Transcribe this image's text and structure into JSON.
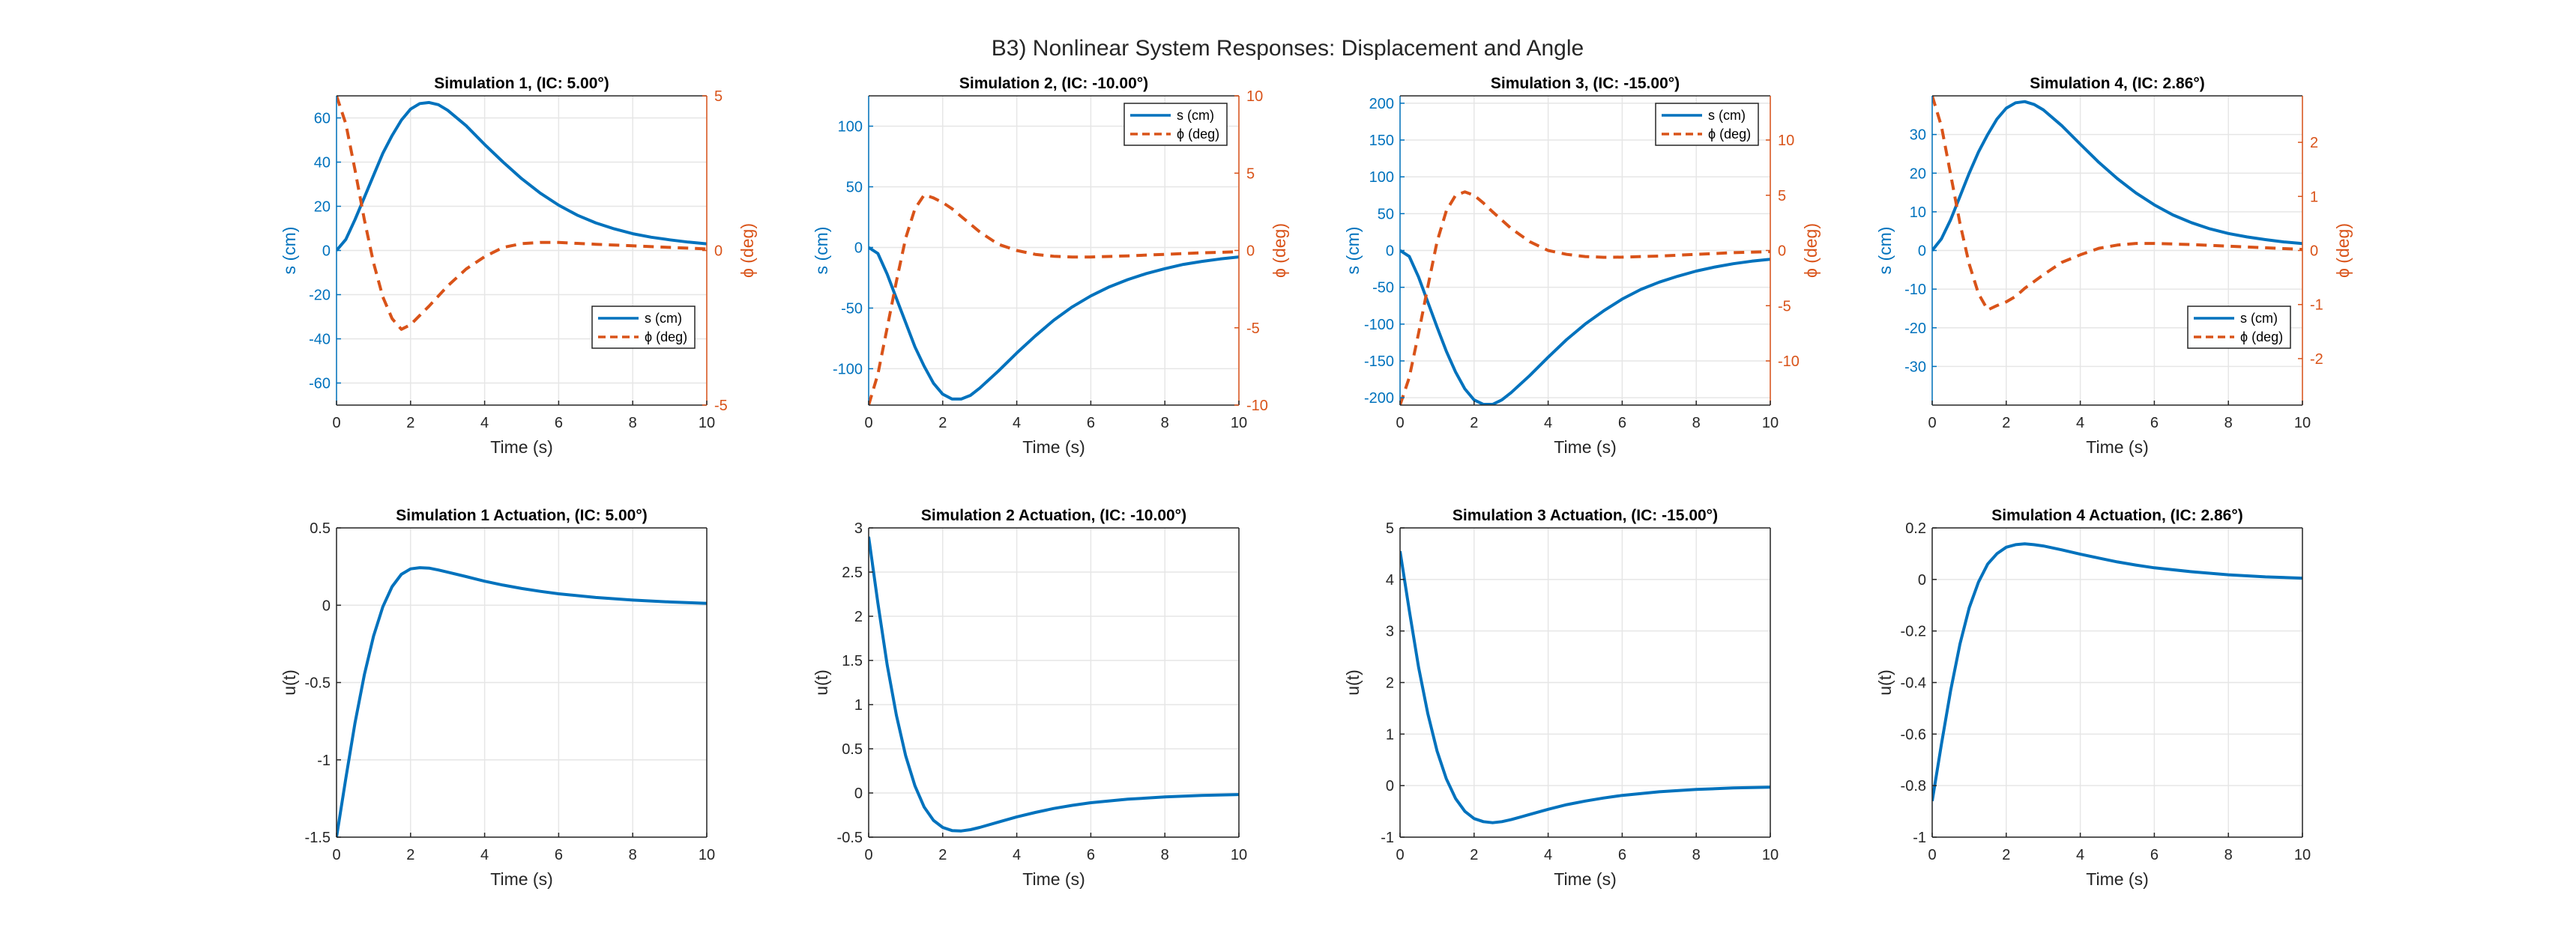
{
  "figure": {
    "title": "B3) Nonlinear System Responses: Displacement and Angle"
  },
  "colors": {
    "displacement": "#0072BD",
    "angle": "#D95319",
    "actuation": "#0072BD",
    "axis": "#262626",
    "grid": "#e6e6e6"
  },
  "chart_data": [
    {
      "type": "line",
      "title": "Simulation 1, (IC: 5.00°)",
      "xlabel": "Time (s)",
      "ylabel": "s (cm)",
      "ylabel_right": "ϕ (deg)",
      "xlim": [
        0,
        10
      ],
      "ylim": [
        -70,
        70
      ],
      "ylim_right": [
        -5,
        5
      ],
      "xticks": [
        0,
        2,
        4,
        6,
        8,
        10
      ],
      "yticks": [
        -60,
        -40,
        -20,
        0,
        20,
        40,
        60
      ],
      "yticks_right": [
        -5,
        0,
        5
      ],
      "grid": true,
      "legend": "bottom-right",
      "series": [
        {
          "name": "s (cm)",
          "axis": "left",
          "style": "solid",
          "x": [
            0,
            0.25,
            0.5,
            0.75,
            1,
            1.25,
            1.5,
            1.75,
            2,
            2.25,
            2.5,
            2.75,
            3,
            3.5,
            4,
            4.5,
            5,
            5.5,
            6,
            6.5,
            7,
            7.5,
            8,
            8.5,
            9,
            9.5,
            10
          ],
          "values": [
            0,
            5,
            14,
            24,
            34,
            44,
            52,
            59,
            64,
            66.5,
            67,
            66,
            63.5,
            56.5,
            48,
            40,
            32.5,
            26,
            20.5,
            16,
            12.5,
            9.8,
            7.6,
            6,
            4.8,
            3.8,
            3
          ]
        },
        {
          "name": "ϕ (deg)",
          "axis": "right",
          "style": "dashed",
          "x": [
            0,
            0.25,
            0.5,
            0.75,
            1,
            1.25,
            1.5,
            1.75,
            2,
            2.25,
            2.5,
            3,
            3.5,
            4,
            4.5,
            5,
            5.5,
            6,
            6.5,
            7,
            8,
            9,
            10
          ],
          "values": [
            5,
            4.1,
            2.6,
            1,
            -0.4,
            -1.5,
            -2.2,
            -2.55,
            -2.4,
            -2.1,
            -1.8,
            -1.15,
            -0.6,
            -0.2,
            0.1,
            0.22,
            0.26,
            0.26,
            0.23,
            0.2,
            0.15,
            0.1,
            0.05
          ]
        }
      ]
    },
    {
      "type": "line",
      "title": "Simulation 2, (IC: -10.00°)",
      "xlabel": "Time (s)",
      "ylabel": "s (cm)",
      "ylabel_right": "ϕ (deg)",
      "xlim": [
        0,
        10
      ],
      "ylim": [
        -130,
        125
      ],
      "ylim_right": [
        -10,
        10
      ],
      "xticks": [
        0,
        2,
        4,
        6,
        8,
        10
      ],
      "yticks": [
        -100,
        -50,
        0,
        50,
        100
      ],
      "yticks_right": [
        -10,
        -5,
        0,
        5,
        10
      ],
      "grid": true,
      "legend": "top-right",
      "series": [
        {
          "name": "s (cm)",
          "axis": "left",
          "style": "solid",
          "x": [
            0,
            0.25,
            0.5,
            0.75,
            1,
            1.25,
            1.5,
            1.75,
            2,
            2.25,
            2.5,
            2.75,
            3,
            3.5,
            4,
            4.5,
            5,
            5.5,
            6,
            6.5,
            7,
            7.5,
            8,
            8.5,
            9,
            9.5,
            10
          ],
          "values": [
            0,
            -5,
            -22,
            -42,
            -62,
            -82,
            -98,
            -112,
            -121,
            -125,
            -125,
            -122,
            -116,
            -102,
            -87,
            -73,
            -60,
            -49,
            -40,
            -32.5,
            -26.5,
            -21.5,
            -17.5,
            -14,
            -11.5,
            -9.5,
            -7.8
          ]
        },
        {
          "name": "ϕ (deg)",
          "axis": "right",
          "style": "dashed",
          "x": [
            0,
            0.25,
            0.5,
            0.75,
            1,
            1.25,
            1.5,
            1.75,
            2,
            2.25,
            2.5,
            3,
            3.5,
            4,
            4.5,
            5,
            5.5,
            6,
            7,
            8,
            9,
            10
          ],
          "values": [
            -10,
            -8,
            -5,
            -2,
            0.8,
            2.7,
            3.6,
            3.4,
            3.1,
            2.7,
            2.2,
            1.2,
            0.4,
            0,
            -0.25,
            -0.38,
            -0.42,
            -0.42,
            -0.35,
            -0.25,
            -0.15,
            -0.08
          ]
        }
      ]
    },
    {
      "type": "line",
      "title": "Simulation 3, (IC: -15.00°)",
      "xlabel": "Time (s)",
      "ylabel": "s (cm)",
      "ylabel_right": "ϕ (deg)",
      "xlim": [
        0,
        10
      ],
      "ylim": [
        -210,
        210
      ],
      "ylim_right": [
        -14,
        14
      ],
      "xticks": [
        0,
        2,
        4,
        6,
        8,
        10
      ],
      "yticks": [
        -200,
        -150,
        -100,
        -50,
        0,
        50,
        100,
        150,
        200
      ],
      "yticks_right": [
        -10,
        -5,
        0,
        5,
        10
      ],
      "grid": true,
      "legend": "top-right",
      "series": [
        {
          "name": "s (cm)",
          "axis": "left",
          "style": "solid",
          "x": [
            0,
            0.25,
            0.5,
            0.75,
            1,
            1.25,
            1.5,
            1.75,
            2,
            2.25,
            2.5,
            2.75,
            3,
            3.5,
            4,
            4.5,
            5,
            5.5,
            6,
            6.5,
            7,
            7.5,
            8,
            8.5,
            9,
            9.5,
            10
          ],
          "values": [
            0,
            -8,
            -36,
            -70,
            -104,
            -137,
            -165,
            -188,
            -203,
            -209,
            -209,
            -203,
            -193,
            -170,
            -145,
            -121,
            -100,
            -82,
            -66,
            -53,
            -43,
            -35,
            -28,
            -22.5,
            -18,
            -14.5,
            -12
          ]
        },
        {
          "name": "ϕ (deg)",
          "axis": "right",
          "style": "dashed",
          "x": [
            0,
            0.25,
            0.5,
            0.75,
            1,
            1.25,
            1.5,
            1.75,
            2,
            2.25,
            2.5,
            3,
            3.5,
            4,
            4.5,
            5,
            5.5,
            6,
            7,
            8,
            9,
            10
          ],
          "values": [
            -14,
            -11.5,
            -7.5,
            -3.3,
            0.8,
            3.6,
            5,
            5.3,
            5,
            4.3,
            3.5,
            2,
            0.8,
            0,
            -0.35,
            -0.55,
            -0.62,
            -0.6,
            -0.5,
            -0.35,
            -0.2,
            -0.1
          ]
        }
      ]
    },
    {
      "type": "line",
      "title": "Simulation 4, (IC: 2.86°)",
      "xlabel": "Time (s)",
      "ylabel": "s (cm)",
      "ylabel_right": "ϕ (deg)",
      "xlim": [
        0,
        10
      ],
      "ylim": [
        -40,
        40
      ],
      "ylim_right": [
        -2.86,
        2.86
      ],
      "xticks": [
        0,
        2,
        4,
        6,
        8,
        10
      ],
      "yticks": [
        -30,
        -20,
        -10,
        0,
        10,
        20,
        30
      ],
      "yticks_right": [
        -2,
        -1,
        0,
        1,
        2
      ],
      "grid": true,
      "legend": "bottom-right",
      "series": [
        {
          "name": "s (cm)",
          "axis": "left",
          "style": "solid",
          "x": [
            0,
            0.25,
            0.5,
            0.75,
            1,
            1.25,
            1.5,
            1.75,
            2,
            2.25,
            2.5,
            2.75,
            3,
            3.5,
            4,
            4.5,
            5,
            5.5,
            6,
            6.5,
            7,
            7.5,
            8,
            8.5,
            9,
            9.5,
            10
          ],
          "values": [
            0,
            3,
            8,
            14,
            20,
            25.5,
            30,
            34,
            36.8,
            38.2,
            38.5,
            37.8,
            36.4,
            32.3,
            27.5,
            22.8,
            18.6,
            14.9,
            11.8,
            9.2,
            7.2,
            5.6,
            4.4,
            3.5,
            2.8,
            2.2,
            1.8
          ]
        },
        {
          "name": "ϕ (deg)",
          "axis": "right",
          "style": "dashed",
          "x": [
            0,
            0.25,
            0.5,
            0.75,
            1,
            1.25,
            1.5,
            1.75,
            2,
            2.25,
            2.5,
            3,
            3.5,
            4,
            4.5,
            5,
            5.5,
            6,
            6.5,
            7,
            8,
            9,
            10
          ],
          "values": [
            2.86,
            2.3,
            1.4,
            0.5,
            -0.25,
            -0.8,
            -1.1,
            -1.02,
            -0.95,
            -0.85,
            -0.7,
            -0.45,
            -0.22,
            -0.08,
            0.04,
            0.1,
            0.13,
            0.13,
            0.12,
            0.11,
            0.08,
            0.05,
            0.02
          ]
        }
      ]
    },
    {
      "type": "line",
      "title": "Simulation 1 Actuation, (IC: 5.00°)",
      "xlabel": "Time (s)",
      "ylabel": "u(t)",
      "xlim": [
        0,
        10
      ],
      "ylim": [
        -1.5,
        0.5
      ],
      "xticks": [
        0,
        2,
        4,
        6,
        8,
        10
      ],
      "yticks": [
        -1.5,
        -1,
        -0.5,
        0,
        0.5
      ],
      "grid": true,
      "series": [
        {
          "name": "",
          "axis": "left",
          "style": "solid",
          "x": [
            0,
            0.25,
            0.5,
            0.75,
            1,
            1.25,
            1.5,
            1.75,
            2,
            2.25,
            2.5,
            2.75,
            3,
            3.5,
            4,
            4.5,
            5,
            5.5,
            6,
            7,
            8,
            9,
            10
          ],
          "values": [
            -1.5,
            -1.12,
            -0.76,
            -0.45,
            -0.2,
            -0.01,
            0.12,
            0.2,
            0.235,
            0.243,
            0.24,
            0.228,
            0.214,
            0.185,
            0.155,
            0.13,
            0.108,
            0.09,
            0.074,
            0.05,
            0.033,
            0.021,
            0.012
          ]
        }
      ]
    },
    {
      "type": "line",
      "title": "Simulation 2 Actuation, (IC: -10.00°)",
      "xlabel": "Time (s)",
      "ylabel": "u(t)",
      "xlim": [
        0,
        10
      ],
      "ylim": [
        -0.5,
        3
      ],
      "xticks": [
        0,
        2,
        4,
        6,
        8,
        10
      ],
      "yticks": [
        -0.5,
        0,
        0.5,
        1,
        1.5,
        2,
        2.5,
        3
      ],
      "grid": true,
      "series": [
        {
          "name": "",
          "axis": "left",
          "style": "solid",
          "x": [
            0,
            0.25,
            0.5,
            0.75,
            1,
            1.25,
            1.5,
            1.75,
            2,
            2.25,
            2.5,
            2.75,
            3,
            3.5,
            4,
            4.5,
            5,
            5.5,
            6,
            7,
            8,
            9,
            10
          ],
          "values": [
            2.9,
            2.15,
            1.45,
            0.88,
            0.42,
            0.08,
            -0.16,
            -0.31,
            -0.39,
            -0.425,
            -0.43,
            -0.415,
            -0.39,
            -0.33,
            -0.27,
            -0.22,
            -0.175,
            -0.14,
            -0.11,
            -0.07,
            -0.045,
            -0.028,
            -0.018
          ]
        }
      ]
    },
    {
      "type": "line",
      "title": "Simulation 3 Actuation, (IC: -15.00°)",
      "xlabel": "Time (s)",
      "ylabel": "u(t)",
      "xlim": [
        0,
        10
      ],
      "ylim": [
        -1,
        5
      ],
      "xticks": [
        0,
        2,
        4,
        6,
        8,
        10
      ],
      "yticks": [
        -1,
        0,
        1,
        2,
        3,
        4,
        5
      ],
      "grid": true,
      "series": [
        {
          "name": "",
          "axis": "left",
          "style": "solid",
          "x": [
            0,
            0.25,
            0.5,
            0.75,
            1,
            1.25,
            1.5,
            1.75,
            2,
            2.25,
            2.5,
            2.75,
            3,
            3.5,
            4,
            4.5,
            5,
            5.5,
            6,
            7,
            8,
            9,
            10
          ],
          "values": [
            4.55,
            3.4,
            2.3,
            1.4,
            0.67,
            0.13,
            -0.25,
            -0.5,
            -0.64,
            -0.7,
            -0.72,
            -0.7,
            -0.66,
            -0.56,
            -0.46,
            -0.37,
            -0.3,
            -0.24,
            -0.19,
            -0.12,
            -0.075,
            -0.045,
            -0.03
          ]
        }
      ]
    },
    {
      "type": "line",
      "title": "Simulation 4 Actuation, (IC: 2.86°)",
      "xlabel": "Time (s)",
      "ylabel": "u(t)",
      "xlim": [
        0,
        10
      ],
      "ylim": [
        -1,
        0.2
      ],
      "xticks": [
        0,
        2,
        4,
        6,
        8,
        10
      ],
      "yticks": [
        -1,
        -0.8,
        -0.6,
        -0.4,
        -0.2,
        0,
        0.2
      ],
      "grid": true,
      "series": [
        {
          "name": "",
          "axis": "left",
          "style": "solid",
          "x": [
            0,
            0.25,
            0.5,
            0.75,
            1,
            1.25,
            1.5,
            1.75,
            2,
            2.25,
            2.5,
            2.75,
            3,
            3.5,
            4,
            4.5,
            5,
            5.5,
            6,
            7,
            8,
            9,
            10
          ],
          "values": [
            -0.86,
            -0.64,
            -0.43,
            -0.25,
            -0.11,
            -0.01,
            0.06,
            0.1,
            0.125,
            0.135,
            0.138,
            0.135,
            0.13,
            0.115,
            0.098,
            0.083,
            0.068,
            0.056,
            0.045,
            0.03,
            0.018,
            0.01,
            0.005
          ]
        }
      ]
    }
  ]
}
